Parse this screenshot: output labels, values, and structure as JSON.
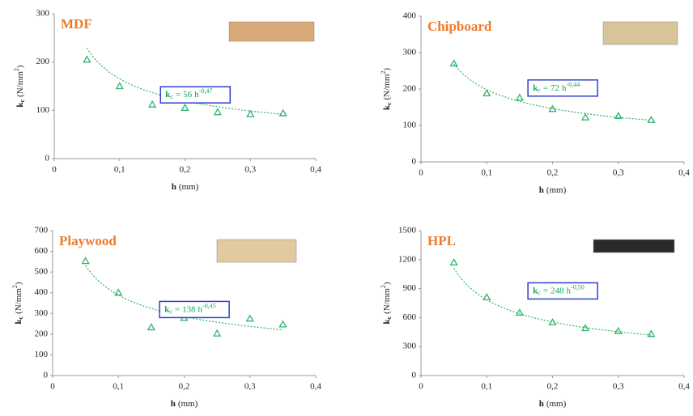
{
  "chart_data": [
    {
      "type": "scatter",
      "title": "MDF",
      "x": [
        0.05,
        0.1,
        0.15,
        0.2,
        0.25,
        0.3,
        0.35
      ],
      "values": [
        205,
        150,
        112,
        105,
        96,
        92,
        94
      ],
      "color": "#2db36b",
      "sample_color": "#d9a978",
      "xlim": [
        0,
        0.4
      ],
      "xticks": [
        0,
        {
          "value": 0.1,
          "label": "0,1"
        },
        {
          "value": 0.2,
          "label": "0,2"
        },
        {
          "value": 0.3,
          "label": "0,3"
        },
        {
          "value": 0.4,
          "label": "0,4"
        }
      ],
      "ylim": [
        0,
        300
      ],
      "yticks": [
        0,
        100,
        200,
        300
      ],
      "x_label": {
        "main": "h",
        "unit": "(mm)"
      },
      "y_label": {
        "main": "k",
        "sub": "c",
        "unit": "(N/mm",
        "sup": "2",
        "end": ")"
      },
      "fit": {
        "lhs": "k",
        "sub": "c",
        "eq": "=",
        "coef": 56,
        "var": "h",
        "exp": {
          "value": -0.47,
          "label": "-0,47"
        }
      }
    },
    {
      "type": "scatter",
      "title": "Chipboard",
      "x": [
        0.05,
        0.1,
        0.15,
        0.2,
        0.25,
        0.3,
        0.35
      ],
      "values": [
        270,
        188,
        176,
        145,
        122,
        126,
        115
      ],
      "color": "#2db36b",
      "sample_color": "#d8c49a",
      "xlim": [
        0,
        0.4
      ],
      "xticks": [
        0,
        {
          "value": 0.1,
          "label": "0,1"
        },
        {
          "value": 0.2,
          "label": "0,2"
        },
        {
          "value": 0.3,
          "label": "0,3"
        },
        {
          "value": 0.4,
          "label": "0,4"
        }
      ],
      "ylim": [
        0,
        400
      ],
      "yticks": [
        0,
        100,
        200,
        300,
        400
      ],
      "x_label": {
        "main": "h",
        "unit": "(mm)"
      },
      "y_label": {
        "main": "k",
        "sub": "c",
        "unit": "(N/mm",
        "sup": "2",
        "end": ")"
      },
      "fit": {
        "lhs": "k",
        "sub": "c",
        "eq": "=",
        "coef": 72,
        "var": "h",
        "exp": {
          "value": -0.44,
          "label": "-0,44"
        }
      }
    },
    {
      "type": "scatter",
      "title": "Playwood",
      "x": [
        0.05,
        0.1,
        0.15,
        0.2,
        0.25,
        0.3,
        0.35
      ],
      "values": [
        553,
        400,
        233,
        278,
        203,
        275,
        247
      ],
      "color": "#2db36b",
      "sample_color": "#e2c9a0",
      "xlim": [
        0,
        0.4
      ],
      "xticks": [
        0,
        {
          "value": 0.1,
          "label": "0,1"
        },
        {
          "value": 0.2,
          "label": "0,2"
        },
        {
          "value": 0.3,
          "label": "0,3"
        },
        {
          "value": 0.4,
          "label": "0,4"
        }
      ],
      "ylim": [
        0,
        700
      ],
      "yticks": [
        0,
        100,
        200,
        300,
        400,
        500,
        600,
        700
      ],
      "x_label": {
        "main": "h",
        "unit": "(mm)"
      },
      "y_label": {
        "main": "k",
        "sub": "c",
        "unit": "(N/mm",
        "sup": "2",
        "end": ")"
      },
      "fit": {
        "lhs": "k",
        "sub": "c",
        "eq": "=",
        "coef": 138,
        "var": "h",
        "exp": {
          "value": -0.45,
          "label": "-0,45"
        }
      }
    },
    {
      "type": "scatter",
      "title": "HPL",
      "x": [
        0.05,
        0.1,
        0.15,
        0.2,
        0.25,
        0.3,
        0.35
      ],
      "values": [
        1170,
        810,
        650,
        550,
        490,
        460,
        430
      ],
      "color": "#2db36b",
      "sample_color": "#2a2a2a",
      "xlim": [
        0,
        0.4
      ],
      "xticks": [
        0,
        {
          "value": 0.1,
          "label": "0,1"
        },
        {
          "value": 0.2,
          "label": "0,2"
        },
        {
          "value": 0.3,
          "label": "0,3"
        },
        {
          "value": 0.4,
          "label": "0,4"
        }
      ],
      "ylim": [
        0,
        1500
      ],
      "yticks": [
        0,
        300,
        600,
        900,
        1200,
        1500
      ],
      "x_label": {
        "main": "h",
        "unit": "(mm)"
      },
      "y_label": {
        "main": "k",
        "sub": "c",
        "unit": "(N/mm",
        "sup": "2",
        "end": ")"
      },
      "fit": {
        "lhs": "k",
        "sub": "c",
        "eq": "=",
        "coef": 248,
        "var": "h",
        "exp": {
          "value": -0.5,
          "label": "-0,50"
        }
      }
    }
  ]
}
